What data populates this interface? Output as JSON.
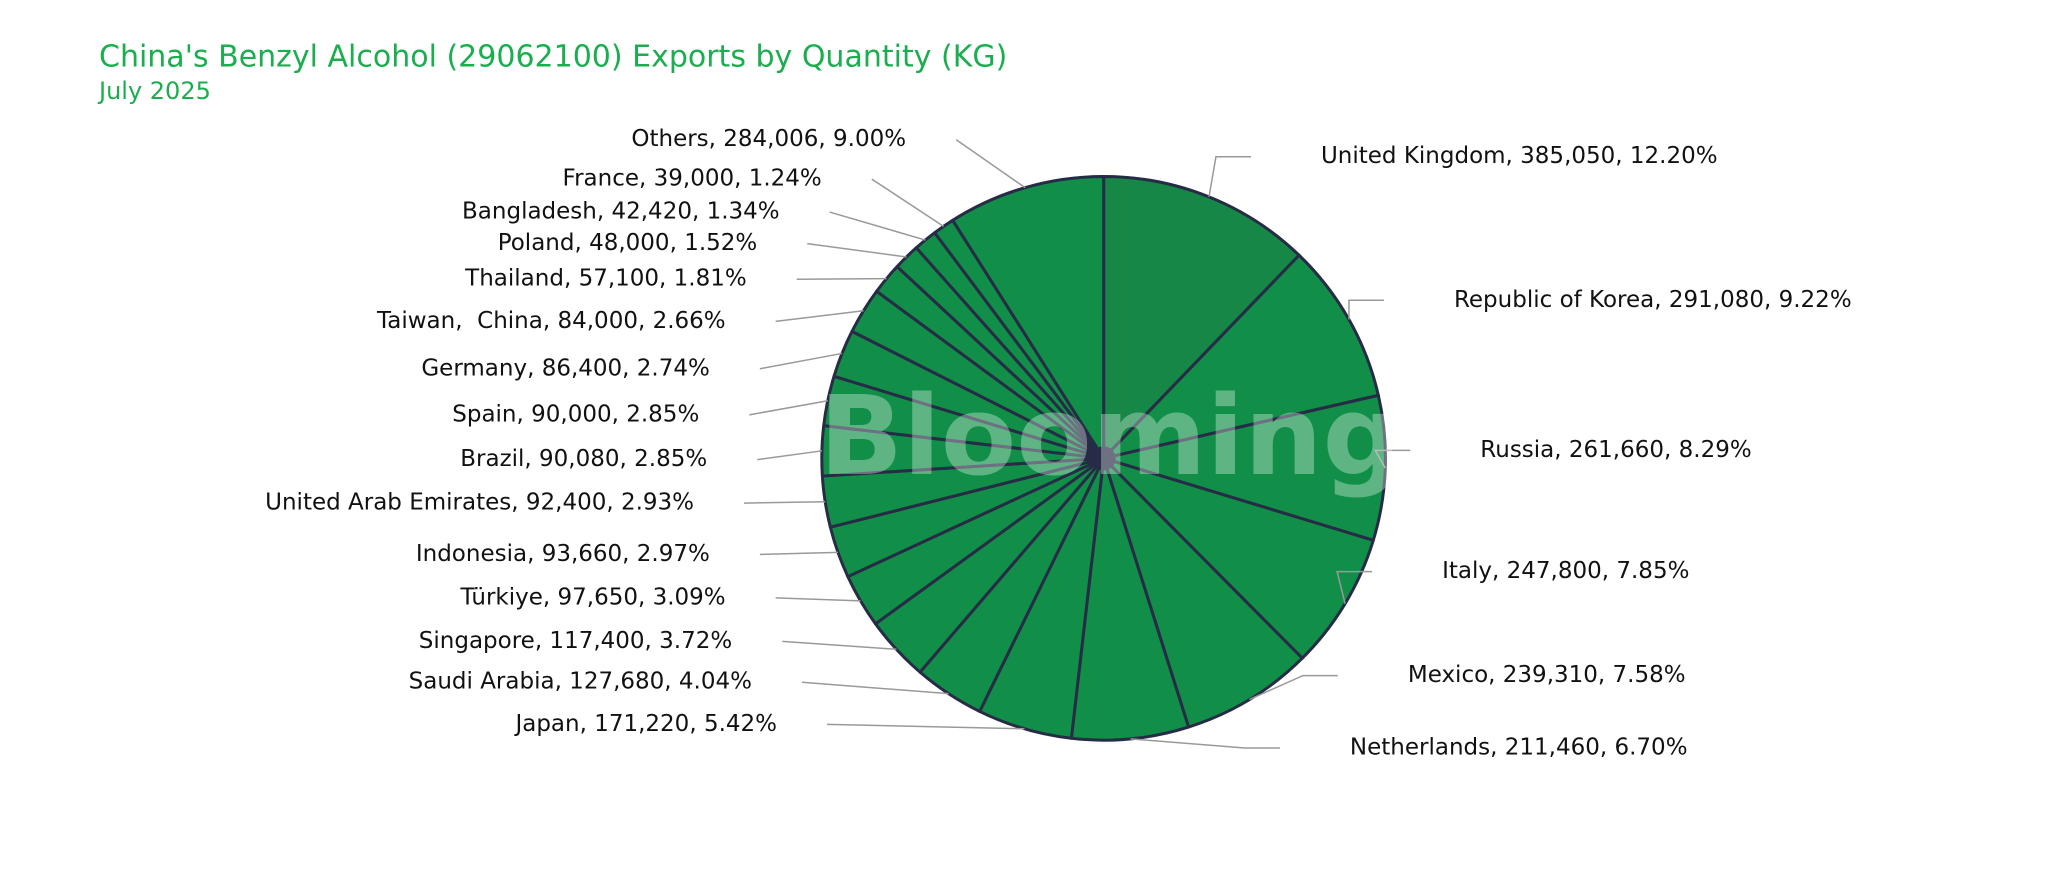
{
  "chart_data": {
    "type": "pie",
    "title": "China's Benzyl Alcohol (29062100) Exports by Quantity (KG)",
    "subtitle": "July 2025",
    "watermark": "Blooming",
    "categories": [
      "United Kingdom",
      "Republic of Korea",
      "Russia",
      "Italy",
      "Mexico",
      "Netherlands",
      "Japan",
      "Saudi Arabia",
      "Singapore",
      "Türkiye",
      "Indonesia",
      "United Arab Emirates",
      "Brazil",
      "Spain",
      "Germany",
      "Taiwan,  China",
      "Thailand",
      "Poland",
      "Bangladesh",
      "France",
      "Others"
    ],
    "values": [
      385050,
      291080,
      261660,
      247800,
      239310,
      211460,
      171220,
      127680,
      117400,
      97650,
      93660,
      92400,
      90080,
      90000,
      86400,
      84000,
      57100,
      48000,
      42420,
      39000,
      284006
    ],
    "value_labels": [
      "United Kingdom, 385,050, 12.20%",
      "Republic of Korea, 291,080, 9.22%",
      "Russia, 261,660, 8.29%",
      "Italy, 247,800, 7.85%",
      "Mexico, 239,310, 7.58%",
      "Netherlands, 211,460, 6.70%",
      "Japan, 171,220, 5.42%",
      "Saudi Arabia, 127,680, 4.04%",
      "Singapore, 117,400, 3.72%",
      "Türkiye, 97,650, 3.09%",
      "Indonesia, 93,660, 2.97%",
      "United Arab Emirates, 92,400, 2.93%",
      "Brazil, 90,080, 2.85%",
      "Spain, 90,000, 2.85%",
      "Germany, 86,400, 2.74%",
      "Taiwan,  China, 84,000, 2.66%",
      "Thailand, 57,100, 1.81%",
      "Poland, 48,000, 1.52%",
      "Bangladesh, 42,420, 1.34%",
      "France, 39,000, 1.24%",
      "Others, 284,006, 9.00%"
    ],
    "colors": [
      "#168746",
      "#118f48",
      "#118f48",
      "#118f48",
      "#118f48",
      "#118f48",
      "#118f48",
      "#118f48",
      "#118f48",
      "#118f48",
      "#118f48",
      "#118f48",
      "#118f48",
      "#118f48",
      "#118f48",
      "#118f48",
      "#118f48",
      "#118f48",
      "#118f48",
      "#118f48",
      "#118f48"
    ]
  }
}
